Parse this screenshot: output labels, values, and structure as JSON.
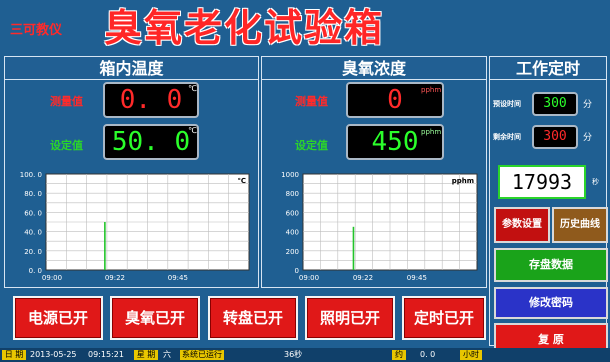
{
  "title": {
    "brand": "三可教仪",
    "main": "臭氧老化试验箱"
  },
  "temperature": {
    "header": "箱内温度",
    "measured_label": "测量值",
    "measured_value": "0. 0",
    "measured_unit": "℃",
    "set_label": "设定值",
    "set_value": "50. 0",
    "set_unit": "℃"
  },
  "ozone": {
    "header": "臭氧浓度",
    "measured_label": "测量值",
    "measured_value": "0",
    "measured_unit": "pphm",
    "set_label": "设定值",
    "set_value": "450",
    "set_unit": "pphm"
  },
  "timer": {
    "header": "工作定时",
    "preset_label": "预设时间",
    "preset_value": "300",
    "preset_unit": "分",
    "remain_label": "剩余时间",
    "remain_value": "300",
    "remain_unit": "分",
    "counter_value": "17993",
    "counter_unit": "秒"
  },
  "chart_data": [
    {
      "type": "line",
      "unit_label": "℃",
      "y_ticks": [
        "100. 0",
        "80. 0",
        "60. 0",
        "40. 0",
        "20. 0",
        "0. 0"
      ],
      "ylim": [
        0,
        100
      ],
      "x_ticks": [
        "09:00",
        "09:22",
        "09:45"
      ],
      "spike_value": 50,
      "grid": true
    },
    {
      "type": "line",
      "unit_label": "pphm",
      "y_ticks": [
        "1000",
        "800",
        "600",
        "400",
        "200",
        "0"
      ],
      "ylim": [
        0,
        1000
      ],
      "x_ticks": [
        "09:00",
        "09:22",
        "09:45"
      ],
      "spike_value": 450,
      "grid": true
    }
  ],
  "buttons": {
    "power": "电源已开",
    "ozone": "臭氧已开",
    "turntable": "转盘已开",
    "light": "照明已开",
    "timer": "定时已开"
  },
  "side_buttons": {
    "params": "参数设置",
    "history": "历史曲线",
    "save": "存盘数据",
    "password": "修改密码",
    "reset": "复 原"
  },
  "colors": {
    "background": "#1f5f92",
    "red": "#e01818",
    "green_lcd": "#2bff2b",
    "red_lcd": "#ff2a2a",
    "trace": "#22c42a"
  },
  "status": {
    "date_label": "日 期",
    "date": "2013-05-25",
    "time": "09:15:21",
    "weekday_label": "星 期",
    "weekday": "六",
    "run_label": "系统已运行",
    "run_value": "36秒",
    "extra_label": "约",
    "extra_value": "0. 0",
    "hours_label": "小时"
  }
}
